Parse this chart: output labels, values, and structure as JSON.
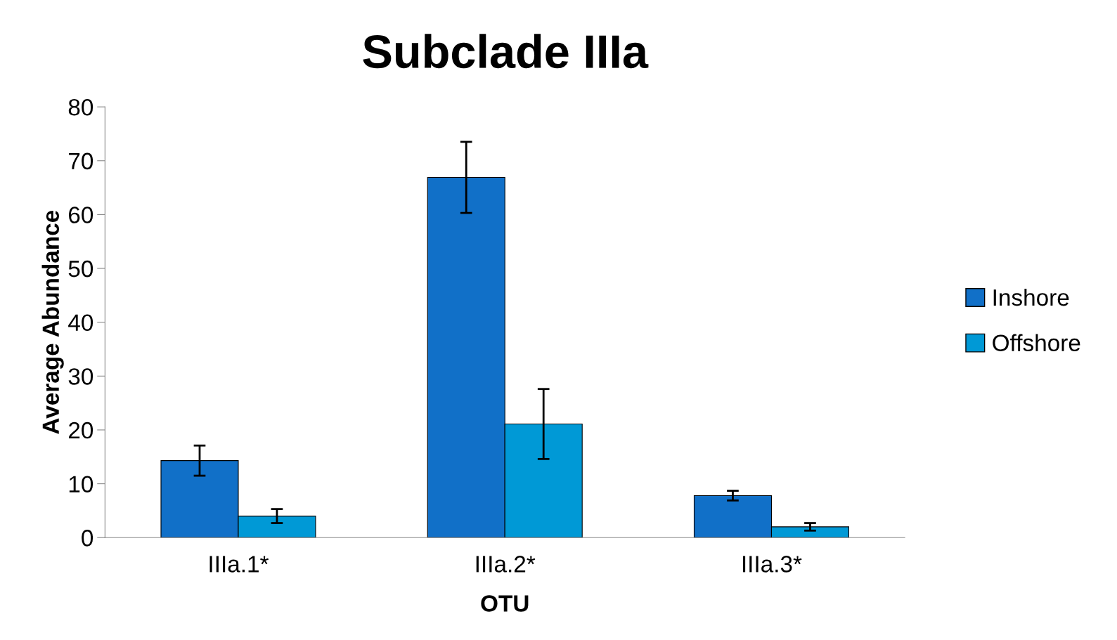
{
  "chart_data": {
    "type": "bar",
    "title": "Subclade IIIa",
    "xlabel": "OTU",
    "ylabel": "Average Abundance",
    "categories": [
      "IIIa.1*",
      "IIIa.2*",
      "IIIa.3*"
    ],
    "series": [
      {
        "name": "Inshore",
        "color": "#1170c8",
        "values": [
          14.3,
          66.9,
          7.8
        ],
        "errors": [
          2.8,
          6.6,
          0.9
        ]
      },
      {
        "name": "Offshore",
        "color": "#0099d6",
        "values": [
          4.0,
          21.1,
          2.0
        ],
        "errors": [
          1.3,
          6.5,
          0.7
        ]
      }
    ],
    "ylim": [
      0,
      80
    ],
    "yticks": [
      0,
      10,
      20,
      30,
      40,
      50,
      60,
      70,
      80
    ],
    "grid": false,
    "legend": "right"
  }
}
